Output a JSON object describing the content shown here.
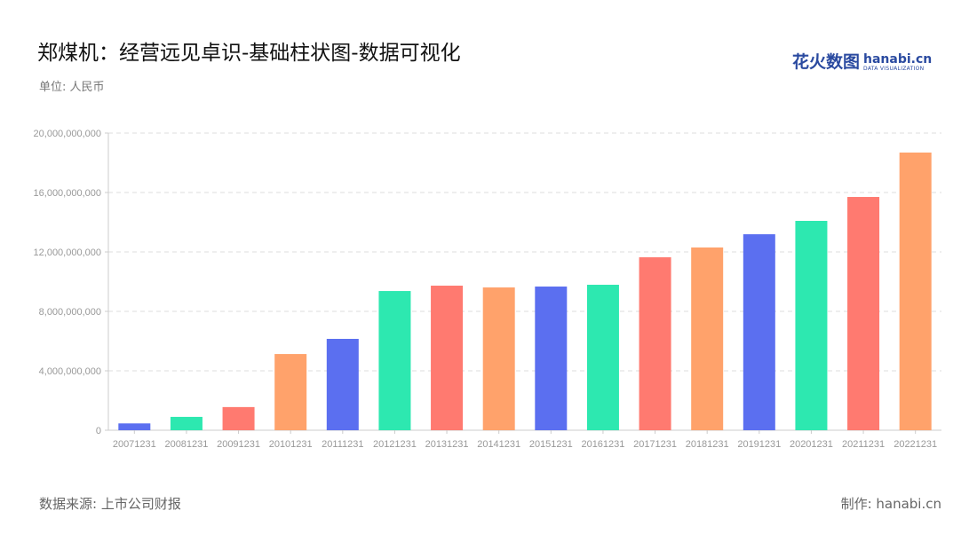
{
  "title": "郑煤机：经营远见卓识-基础柱状图-数据可视化",
  "unit": "单位: 人民币",
  "source": "数据来源: 上市公司财报",
  "credit": "制作: hanabi.cn",
  "logo": {
    "cn": "花火数图",
    "en": "hanabi.cn",
    "sub": "DATA VISUALIZATION"
  },
  "colors": [
    "#5b6ff0",
    "#2de8b0",
    "#ff7a70",
    "#ffa26b"
  ],
  "chart_data": {
    "type": "bar",
    "title": "郑煤机：经营远见卓识-基础柱状图-数据可视化",
    "ylabel": "单位: 人民币",
    "ylim": [
      0,
      20000000000
    ],
    "yticks": [
      "0",
      "4,000,000,000",
      "8,000,000,000",
      "12,000,000,000",
      "16,000,000,000",
      "20,000,000,000"
    ],
    "ytick_values": [
      0,
      4000000000,
      8000000000,
      12000000000,
      16000000000,
      20000000000
    ],
    "grid": true,
    "categories": [
      "20071231",
      "20081231",
      "20091231",
      "20101231",
      "20111231",
      "20121231",
      "20131231",
      "20141231",
      "20151231",
      "20161231",
      "20171231",
      "20181231",
      "20191231",
      "20201231",
      "20211231",
      "20221231"
    ],
    "values": [
      460000000,
      900000000,
      1560000000,
      5130000000,
      6150000000,
      9370000000,
      9730000000,
      9610000000,
      9670000000,
      9790000000,
      11640000000,
      12300000000,
      13190000000,
      14090000000,
      15700000000,
      18690000000
    ]
  }
}
